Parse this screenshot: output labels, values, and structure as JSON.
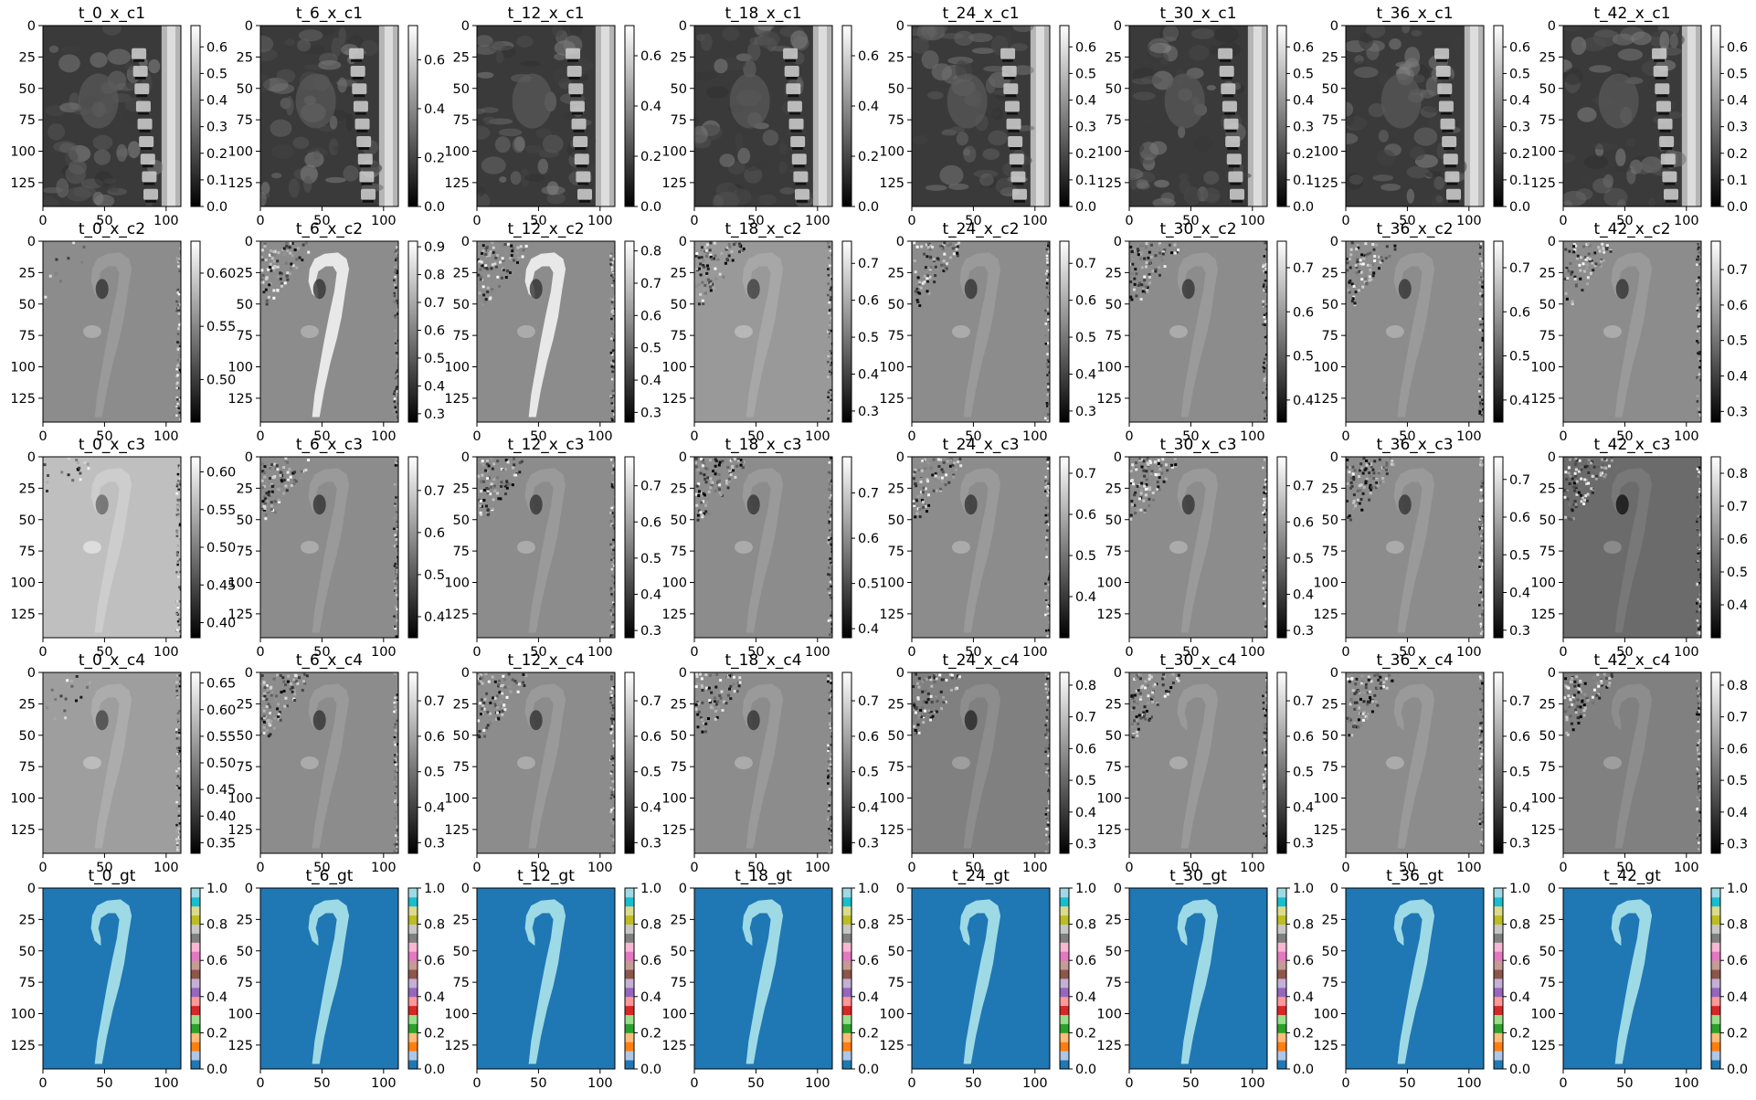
{
  "chart_data": {
    "type": "image-grid",
    "layout": {
      "rows": 5,
      "cols": 8
    },
    "timepoints": [
      "t_0",
      "t_6",
      "t_12",
      "t_18",
      "t_24",
      "t_30",
      "t_36",
      "t_42"
    ],
    "row_suffixes": [
      "x_c1",
      "x_c2",
      "x_c3",
      "x_c4",
      "gt"
    ],
    "image_axes": {
      "x_range": [
        0,
        112
      ],
      "y_range": [
        0,
        144
      ],
      "x_ticks": [
        "0",
        "50",
        "100"
      ],
      "y_ticks": [
        "0",
        "25",
        "50",
        "75",
        "100",
        "125"
      ]
    },
    "panels": [
      {
        "title": "t_0_x_c1",
        "row": 0,
        "col": 0,
        "kind": "anatomy",
        "cbar_range": [
          0,
          0.68
        ],
        "cbar_ticks": [
          "0.0",
          "0.1",
          "0.2",
          "0.3",
          "0.4",
          "0.5",
          "0.6"
        ]
      },
      {
        "title": "t_6_x_c1",
        "row": 0,
        "col": 1,
        "kind": "anatomy",
        "cbar_range": [
          0,
          0.74
        ],
        "cbar_ticks": [
          "0.0",
          "0.2",
          "0.4",
          "0.6"
        ]
      },
      {
        "title": "t_12_x_c1",
        "row": 0,
        "col": 2,
        "kind": "anatomy",
        "cbar_range": [
          0,
          0.72
        ],
        "cbar_ticks": [
          "0.0",
          "0.2",
          "0.4",
          "0.6"
        ]
      },
      {
        "title": "t_18_x_c1",
        "row": 0,
        "col": 3,
        "kind": "anatomy",
        "cbar_range": [
          0,
          0.72
        ],
        "cbar_ticks": [
          "0.0",
          "0.2",
          "0.4",
          "0.6"
        ]
      },
      {
        "title": "t_24_x_c1",
        "row": 0,
        "col": 4,
        "kind": "anatomy",
        "cbar_range": [
          0,
          0.68
        ],
        "cbar_ticks": [
          "0.0",
          "0.1",
          "0.2",
          "0.3",
          "0.4",
          "0.5",
          "0.6"
        ]
      },
      {
        "title": "t_30_x_c1",
        "row": 0,
        "col": 5,
        "kind": "anatomy",
        "cbar_range": [
          0,
          0.68
        ],
        "cbar_ticks": [
          "0.0",
          "0.1",
          "0.2",
          "0.3",
          "0.4",
          "0.5",
          "0.6"
        ]
      },
      {
        "title": "t_36_x_c1",
        "row": 0,
        "col": 6,
        "kind": "anatomy",
        "cbar_range": [
          0,
          0.68
        ],
        "cbar_ticks": [
          "0.0",
          "0.1",
          "0.2",
          "0.3",
          "0.4",
          "0.5",
          "0.6"
        ]
      },
      {
        "title": "t_42_x_c1",
        "row": 0,
        "col": 7,
        "kind": "anatomy",
        "cbar_range": [
          0,
          0.68
        ],
        "cbar_ticks": [
          "0.0",
          "0.1",
          "0.2",
          "0.3",
          "0.4",
          "0.5",
          "0.6"
        ]
      },
      {
        "title": "t_0_x_c2",
        "row": 1,
        "col": 0,
        "kind": "velocity",
        "bg": 0.55,
        "cbar_range": [
          0.46,
          0.63
        ],
        "cbar_ticks": [
          "0.50",
          "0.55",
          "0.60"
        ]
      },
      {
        "title": "t_6_x_c2",
        "row": 1,
        "col": 1,
        "kind": "velocity",
        "bg": 0.55,
        "cbar_range": [
          0.27,
          0.92
        ],
        "cbar_ticks": [
          "0.3",
          "0.4",
          "0.5",
          "0.6",
          "0.7",
          "0.8",
          "0.9"
        ]
      },
      {
        "title": "t_12_x_c2",
        "row": 1,
        "col": 2,
        "kind": "velocity",
        "bg": 0.55,
        "cbar_range": [
          0.27,
          0.83
        ],
        "cbar_ticks": [
          "0.3",
          "0.4",
          "0.5",
          "0.6",
          "0.7",
          "0.8"
        ]
      },
      {
        "title": "t_18_x_c2",
        "row": 1,
        "col": 3,
        "kind": "velocity",
        "bg": 0.6,
        "cbar_range": [
          0.27,
          0.76
        ],
        "cbar_ticks": [
          "0.3",
          "0.4",
          "0.5",
          "0.6",
          "0.7"
        ]
      },
      {
        "title": "t_24_x_c2",
        "row": 1,
        "col": 4,
        "kind": "velocity",
        "bg": 0.55,
        "cbar_range": [
          0.27,
          0.76
        ],
        "cbar_ticks": [
          "0.3",
          "0.4",
          "0.5",
          "0.6",
          "0.7"
        ]
      },
      {
        "title": "t_30_x_c2",
        "row": 1,
        "col": 5,
        "kind": "velocity",
        "bg": 0.55,
        "cbar_range": [
          0.35,
          0.76
        ],
        "cbar_ticks": [
          "0.4",
          "0.5",
          "0.6",
          "0.7"
        ]
      },
      {
        "title": "t_36_x_c2",
        "row": 1,
        "col": 6,
        "kind": "velocity",
        "bg": 0.55,
        "cbar_range": [
          0.35,
          0.76
        ],
        "cbar_ticks": [
          "0.4",
          "0.5",
          "0.6",
          "0.7"
        ]
      },
      {
        "title": "t_42_x_c2",
        "row": 1,
        "col": 7,
        "kind": "velocity",
        "bg": 0.55,
        "cbar_range": [
          0.27,
          0.78
        ],
        "cbar_ticks": [
          "0.3",
          "0.4",
          "0.5",
          "0.6",
          "0.7"
        ]
      },
      {
        "title": "t_0_x_c3",
        "row": 2,
        "col": 0,
        "kind": "velocity",
        "bg": 0.75,
        "cbar_range": [
          0.38,
          0.62
        ],
        "cbar_ticks": [
          "0.40",
          "0.45",
          "0.50",
          "0.55",
          "0.60"
        ]
      },
      {
        "title": "t_6_x_c3",
        "row": 2,
        "col": 1,
        "kind": "velocity",
        "bg": 0.55,
        "cbar_range": [
          0.35,
          0.78
        ],
        "cbar_ticks": [
          "0.4",
          "0.5",
          "0.6",
          "0.7"
        ]
      },
      {
        "title": "t_12_x_c3",
        "row": 2,
        "col": 2,
        "kind": "velocity",
        "bg": 0.55,
        "cbar_range": [
          0.28,
          0.78
        ],
        "cbar_ticks": [
          "0.3",
          "0.4",
          "0.5",
          "0.6",
          "0.7"
        ]
      },
      {
        "title": "t_18_x_c3",
        "row": 2,
        "col": 3,
        "kind": "velocity",
        "bg": 0.55,
        "cbar_range": [
          0.38,
          0.78
        ],
        "cbar_ticks": [
          "0.4",
          "0.5",
          "0.6",
          "0.7"
        ]
      },
      {
        "title": "t_24_x_c3",
        "row": 2,
        "col": 4,
        "kind": "velocity",
        "bg": 0.55,
        "cbar_range": [
          0.3,
          0.74
        ],
        "cbar_ticks": [
          "0.4",
          "0.5",
          "0.6",
          "0.7"
        ]
      },
      {
        "title": "t_30_x_c3",
        "row": 2,
        "col": 5,
        "kind": "velocity",
        "bg": 0.55,
        "cbar_range": [
          0.28,
          0.78
        ],
        "cbar_ticks": [
          "0.3",
          "0.4",
          "0.5",
          "0.6",
          "0.7"
        ]
      },
      {
        "title": "t_36_x_c3",
        "row": 2,
        "col": 6,
        "kind": "velocity",
        "bg": 0.55,
        "cbar_range": [
          0.28,
          0.76
        ],
        "cbar_ticks": [
          "0.3",
          "0.4",
          "0.5",
          "0.6",
          "0.7"
        ]
      },
      {
        "title": "t_42_x_c3",
        "row": 2,
        "col": 7,
        "kind": "velocity",
        "bg": 0.42,
        "cbar_range": [
          0.3,
          0.85
        ],
        "cbar_ticks": [
          "0.4",
          "0.5",
          "0.6",
          "0.7",
          "0.8"
        ]
      },
      {
        "title": "t_0_x_c4",
        "row": 3,
        "col": 0,
        "kind": "velocity",
        "bg": 0.62,
        "cbar_range": [
          0.33,
          0.67
        ],
        "cbar_ticks": [
          "0.35",
          "0.40",
          "0.45",
          "0.50",
          "0.55",
          "0.60",
          "0.65"
        ]
      },
      {
        "title": "t_6_x_c4",
        "row": 3,
        "col": 1,
        "kind": "velocity",
        "bg": 0.55,
        "cbar_range": [
          0.27,
          0.78
        ],
        "cbar_ticks": [
          "0.3",
          "0.4",
          "0.5",
          "0.6",
          "0.7"
        ]
      },
      {
        "title": "t_12_x_c4",
        "row": 3,
        "col": 2,
        "kind": "velocity",
        "bg": 0.55,
        "cbar_range": [
          0.27,
          0.78
        ],
        "cbar_ticks": [
          "0.3",
          "0.4",
          "0.5",
          "0.6",
          "0.7"
        ]
      },
      {
        "title": "t_18_x_c4",
        "row": 3,
        "col": 3,
        "kind": "velocity",
        "bg": 0.55,
        "cbar_range": [
          0.27,
          0.78
        ],
        "cbar_ticks": [
          "0.3",
          "0.4",
          "0.5",
          "0.6",
          "0.7"
        ]
      },
      {
        "title": "t_24_x_c4",
        "row": 3,
        "col": 4,
        "kind": "velocity",
        "bg": 0.5,
        "cbar_range": [
          0.27,
          0.84
        ],
        "cbar_ticks": [
          "0.3",
          "0.4",
          "0.5",
          "0.6",
          "0.7",
          "0.8"
        ]
      },
      {
        "title": "t_30_x_c4",
        "row": 3,
        "col": 5,
        "kind": "velocity",
        "bg": 0.55,
        "cbar_range": [
          0.27,
          0.78
        ],
        "cbar_ticks": [
          "0.3",
          "0.4",
          "0.5",
          "0.6",
          "0.7"
        ]
      },
      {
        "title": "t_36_x_c4",
        "row": 3,
        "col": 6,
        "kind": "velocity",
        "bg": 0.55,
        "cbar_range": [
          0.27,
          0.78
        ],
        "cbar_ticks": [
          "0.3",
          "0.4",
          "0.5",
          "0.6",
          "0.7"
        ]
      },
      {
        "title": "t_42_x_c4",
        "row": 3,
        "col": 7,
        "kind": "velocity",
        "bg": 0.5,
        "cbar_range": [
          0.27,
          0.84
        ],
        "cbar_ticks": [
          "0.3",
          "0.4",
          "0.5",
          "0.6",
          "0.7",
          "0.8"
        ]
      },
      {
        "title": "t_0_gt",
        "row": 4,
        "col": 0,
        "kind": "mask",
        "cbar_range": [
          0,
          1
        ],
        "cbar_ticks": [
          "0.0",
          "0.2",
          "0.4",
          "0.6",
          "0.8",
          "1.0"
        ]
      },
      {
        "title": "t_6_gt",
        "row": 4,
        "col": 1,
        "kind": "mask",
        "cbar_range": [
          0,
          1
        ],
        "cbar_ticks": [
          "0.0",
          "0.2",
          "0.4",
          "0.6",
          "0.8",
          "1.0"
        ]
      },
      {
        "title": "t_12_gt",
        "row": 4,
        "col": 2,
        "kind": "mask",
        "cbar_range": [
          0,
          1
        ],
        "cbar_ticks": [
          "0.0",
          "0.2",
          "0.4",
          "0.6",
          "0.8",
          "1.0"
        ]
      },
      {
        "title": "t_18_gt",
        "row": 4,
        "col": 3,
        "kind": "mask",
        "cbar_range": [
          0,
          1
        ],
        "cbar_ticks": [
          "0.0",
          "0.2",
          "0.4",
          "0.6",
          "0.8",
          "1.0"
        ]
      },
      {
        "title": "t_24_gt",
        "row": 4,
        "col": 4,
        "kind": "mask",
        "cbar_range": [
          0,
          1
        ],
        "cbar_ticks": [
          "0.0",
          "0.2",
          "0.4",
          "0.6",
          "0.8",
          "1.0"
        ]
      },
      {
        "title": "t_30_gt",
        "row": 4,
        "col": 5,
        "kind": "mask",
        "cbar_range": [
          0,
          1
        ],
        "cbar_ticks": [
          "0.0",
          "0.2",
          "0.4",
          "0.6",
          "0.8",
          "1.0"
        ]
      },
      {
        "title": "t_36_gt",
        "row": 4,
        "col": 6,
        "kind": "mask",
        "cbar_range": [
          0,
          1
        ],
        "cbar_ticks": [
          "0.0",
          "0.2",
          "0.4",
          "0.6",
          "0.8",
          "1.0"
        ]
      },
      {
        "title": "t_42_gt",
        "row": 4,
        "col": 7,
        "kind": "mask",
        "cbar_range": [
          0,
          1
        ],
        "cbar_ticks": [
          "0.0",
          "0.2",
          "0.4",
          "0.6",
          "0.8",
          "1.0"
        ]
      }
    ],
    "colormaps": {
      "anatomy": "gray",
      "velocity": "gray",
      "mask": "tab20",
      "mask_background": "#1f77b4",
      "mask_foreground": "#9edae5",
      "tab20_colors": [
        "#1f77b4",
        "#aec7e8",
        "#ff7f0e",
        "#ffbb78",
        "#2ca02c",
        "#98df8a",
        "#d62728",
        "#ff9896",
        "#9467bd",
        "#c5b0d5",
        "#8c564b",
        "#c49c94",
        "#e377c2",
        "#f7b6d2",
        "#7f7f7f",
        "#c7c7c7",
        "#bcbd22",
        "#dbdb8d",
        "#17becf",
        "#9edae5"
      ]
    }
  }
}
